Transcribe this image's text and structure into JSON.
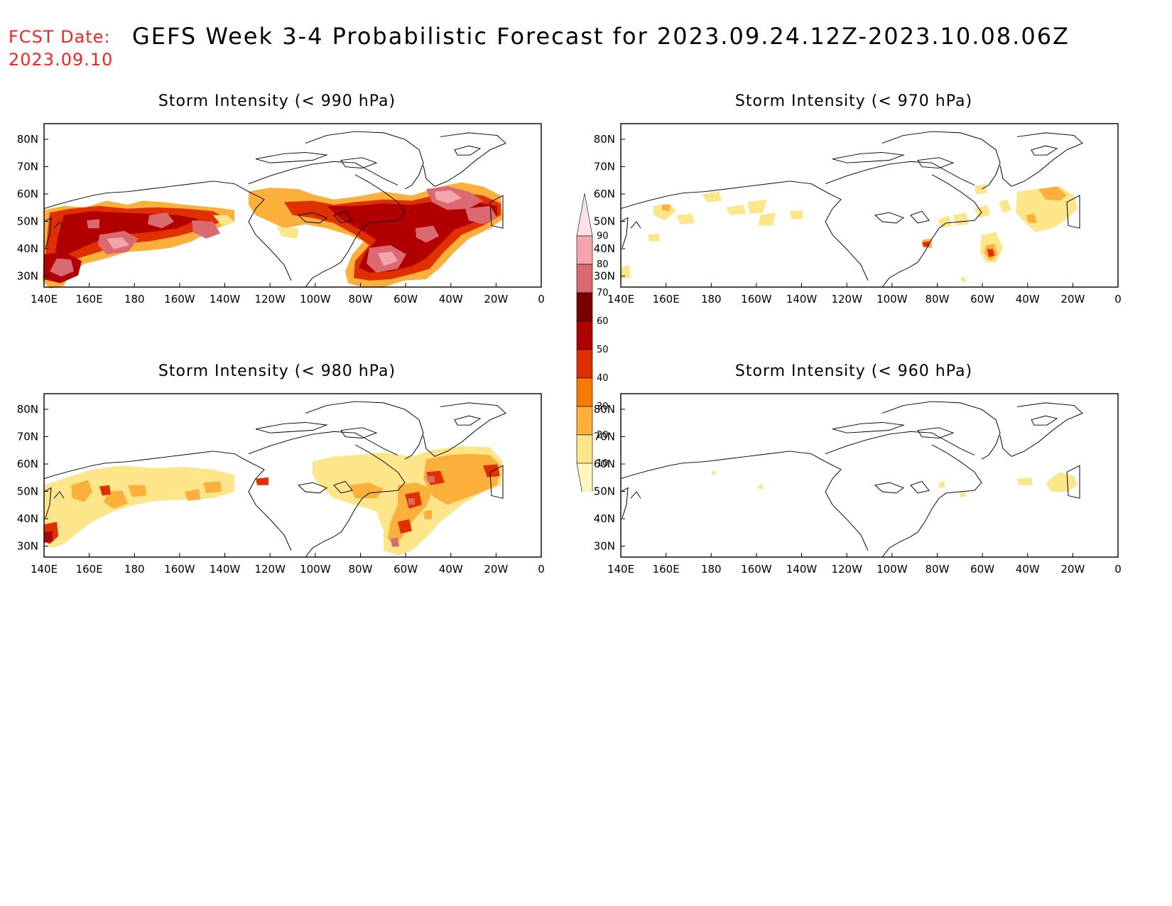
{
  "header": {
    "fcst_label": "FCST Date:",
    "fcst_date": "2023.09.10",
    "title": "GEFS Week 3-4 Probabilistic Forecast for 2023.09.24.12Z-2023.10.08.06Z"
  },
  "axes": {
    "lat_labels": [
      "80N",
      "70N",
      "60N",
      "50N",
      "40N",
      "30N"
    ],
    "lon_labels": [
      "140E",
      "160E",
      "180",
      "160W",
      "140W",
      "120W",
      "100W",
      "80W",
      "60W",
      "40W",
      "20W",
      "0"
    ]
  },
  "colorbar": {
    "levels": [
      "10",
      "20",
      "30",
      "40",
      "50",
      "60",
      "70",
      "80",
      "90"
    ],
    "colors": [
      "#fff5bf",
      "#fde58a",
      "#fbb03b",
      "#f57c00",
      "#e03000",
      "#b00000",
      "#7a0000",
      "#d96a72",
      "#f2a6ac",
      "#fce2e6"
    ]
  },
  "panels": [
    {
      "id": "p990",
      "title": "Storm Intensity (< 990 hPa)"
    },
    {
      "id": "p970",
      "title": "Storm Intensity (< 970 hPa)"
    },
    {
      "id": "p980",
      "title": "Storm Intensity (< 980 hPa)"
    },
    {
      "id": "p960",
      "title": "Storm Intensity (< 960 hPa)"
    }
  ]
}
